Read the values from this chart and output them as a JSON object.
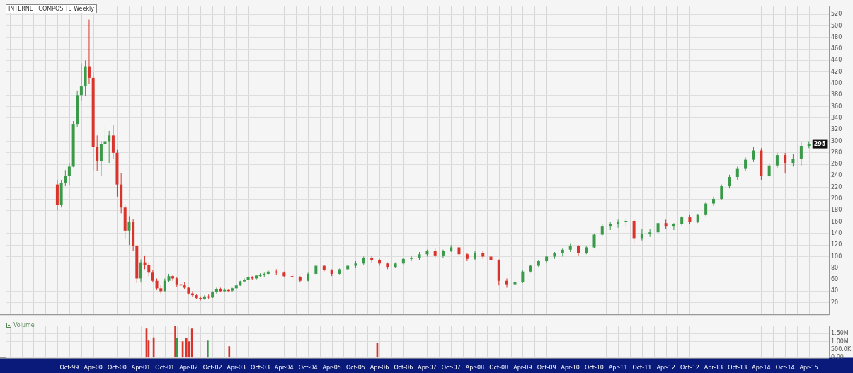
{
  "chart_data": [
    {
      "type": "candlestick",
      "title": "INTERNET COMPOSITE Weekly",
      "x": [
        "1999-07",
        "1999-08",
        "1999-09",
        "1999-10",
        "1999-11",
        "1999-12",
        "2000-01",
        "2000-02",
        "2000-03",
        "2000-04",
        "2000-05",
        "2000-06",
        "2000-07",
        "2000-08",
        "2000-09",
        "2000-10",
        "2000-11",
        "2000-12",
        "2001-01",
        "2001-02",
        "2001-03",
        "2001-04",
        "2001-05",
        "2001-06",
        "2001-07",
        "2001-08",
        "2001-09",
        "2001-10",
        "2001-11",
        "2001-12",
        "2002-01",
        "2002-02",
        "2002-03",
        "2002-04",
        "2002-05",
        "2002-06",
        "2002-07",
        "2002-08",
        "2002-09",
        "2002-10",
        "2002-11",
        "2002-12",
        "2003-01",
        "2003-02",
        "2003-03",
        "2003-04",
        "2003-05",
        "2003-06",
        "2003-07",
        "2003-08",
        "2003-09",
        "2003-10",
        "2003-11",
        "2003-12",
        "2004-02",
        "2004-04",
        "2004-06",
        "2004-08",
        "2004-10",
        "2004-12",
        "2005-02",
        "2005-04",
        "2005-06",
        "2005-08",
        "2005-10",
        "2005-12",
        "2006-02",
        "2006-04",
        "2006-06",
        "2006-08",
        "2006-10",
        "2006-12",
        "2007-02",
        "2007-04",
        "2007-06",
        "2007-08",
        "2007-10",
        "2007-12",
        "2008-02",
        "2008-04",
        "2008-06",
        "2008-08",
        "2008-10",
        "2008-12",
        "2009-02",
        "2009-04",
        "2009-06",
        "2009-08",
        "2009-10",
        "2009-12",
        "2010-02",
        "2010-04",
        "2010-06",
        "2010-08",
        "2010-10",
        "2010-12",
        "2011-02",
        "2011-04",
        "2011-06",
        "2011-08",
        "2011-10",
        "2011-12",
        "2012-02",
        "2012-04",
        "2012-06",
        "2012-08",
        "2012-10",
        "2012-12",
        "2013-02",
        "2013-04",
        "2013-06",
        "2013-08",
        "2013-10",
        "2013-12",
        "2014-02",
        "2014-04",
        "2014-06",
        "2014-08",
        "2014-10",
        "2014-12",
        "2015-02",
        "2015-04"
      ],
      "ohlc": [
        [
          225,
          232,
          180,
          190
        ],
        [
          190,
          232,
          185,
          228
        ],
        [
          228,
          250,
          222,
          240
        ],
        [
          240,
          262,
          224,
          256
        ],
        [
          256,
          335,
          255,
          330
        ],
        [
          330,
          388,
          325,
          380
        ],
        [
          380,
          435,
          370,
          395
        ],
        [
          395,
          440,
          378,
          430
        ],
        [
          430,
          511,
          400,
          410
        ],
        [
          410,
          420,
          248,
          290
        ],
        [
          290,
          310,
          248,
          265
        ],
        [
          265,
          300,
          240,
          295
        ],
        [
          295,
          326,
          265,
          300
        ],
        [
          300,
          318,
          262,
          310
        ],
        [
          310,
          328,
          270,
          280
        ],
        [
          280,
          285,
          204,
          225
        ],
        [
          225,
          245,
          175,
          185
        ],
        [
          185,
          190,
          130,
          145
        ],
        [
          145,
          170,
          120,
          160
        ],
        [
          160,
          165,
          110,
          118
        ],
        [
          118,
          120,
          54,
          62
        ],
        [
          62,
          95,
          55,
          90
        ],
        [
          90,
          102,
          78,
          85
        ],
        [
          85,
          90,
          66,
          72
        ],
        [
          72,
          76,
          55,
          58
        ],
        [
          58,
          62,
          42,
          45
        ],
        [
          45,
          50,
          36,
          40
        ],
        [
          40,
          62,
          40,
          58
        ],
        [
          58,
          70,
          56,
          66
        ],
        [
          66,
          68,
          58,
          62
        ],
        [
          62,
          64,
          48,
          52
        ],
        [
          52,
          58,
          43,
          50
        ],
        [
          50,
          56,
          44,
          46
        ],
        [
          46,
          47,
          34,
          36
        ],
        [
          36,
          40,
          30,
          33
        ],
        [
          33,
          35,
          26,
          28
        ],
        [
          28,
          31,
          24,
          27
        ],
        [
          27,
          33,
          25,
          31
        ],
        [
          31,
          34,
          27,
          29
        ],
        [
          29,
          40,
          28,
          38
        ],
        [
          38,
          46,
          36,
          44
        ],
        [
          44,
          46,
          38,
          40
        ],
        [
          40,
          45,
          38,
          42
        ],
        [
          42,
          44,
          38,
          41
        ],
        [
          41,
          46,
          39,
          45
        ],
        [
          45,
          52,
          44,
          50
        ],
        [
          50,
          58,
          49,
          57
        ],
        [
          57,
          62,
          55,
          60
        ],
        [
          60,
          66,
          58,
          64
        ],
        [
          64,
          66,
          60,
          62
        ],
        [
          62,
          68,
          60,
          67
        ],
        [
          67,
          71,
          64,
          68
        ],
        [
          68,
          72,
          65,
          70
        ],
        [
          70,
          76,
          68,
          74
        ],
        [
          74,
          78,
          68,
          72
        ],
        [
          72,
          74,
          64,
          66
        ],
        [
          66,
          70,
          62,
          64
        ],
        [
          64,
          66,
          55,
          58
        ],
        [
          58,
          72,
          57,
          70
        ],
        [
          70,
          86,
          69,
          84
        ],
        [
          84,
          85,
          74,
          76
        ],
        [
          76,
          78,
          66,
          70
        ],
        [
          70,
          80,
          68,
          78
        ],
        [
          78,
          86,
          76,
          84
        ],
        [
          84,
          92,
          80,
          88
        ],
        [
          88,
          100,
          86,
          98
        ],
        [
          98,
          102,
          90,
          94
        ],
        [
          94,
          96,
          84,
          88
        ],
        [
          88,
          90,
          78,
          82
        ],
        [
          82,
          90,
          80,
          88
        ],
        [
          88,
          98,
          86,
          96
        ],
        [
          96,
          102,
          92,
          98
        ],
        [
          98,
          108,
          94,
          104
        ],
        [
          104,
          112,
          100,
          110
        ],
        [
          110,
          114,
          98,
          102
        ],
        [
          102,
          112,
          98,
          110
        ],
        [
          110,
          120,
          108,
          116
        ],
        [
          116,
          118,
          100,
          104
        ],
        [
          104,
          106,
          92,
          96
        ],
        [
          96,
          110,
          94,
          106
        ],
        [
          106,
          110,
          96,
          100
        ],
        [
          100,
          102,
          92,
          94
        ],
        [
          94,
          95,
          50,
          58
        ],
        [
          58,
          62,
          46,
          52
        ],
        [
          52,
          60,
          47,
          56
        ],
        [
          56,
          76,
          54,
          74
        ],
        [
          74,
          86,
          72,
          84
        ],
        [
          84,
          94,
          82,
          92
        ],
        [
          92,
          102,
          90,
          100
        ],
        [
          100,
          108,
          96,
          106
        ],
        [
          106,
          114,
          100,
          112
        ],
        [
          112,
          122,
          108,
          118
        ],
        [
          118,
          120,
          102,
          106
        ],
        [
          106,
          118,
          104,
          116
        ],
        [
          116,
          140,
          114,
          138
        ],
        [
          138,
          156,
          136,
          152
        ],
        [
          152,
          160,
          146,
          156
        ],
        [
          156,
          164,
          150,
          160
        ],
        [
          160,
          166,
          152,
          162
        ],
        [
          162,
          165,
          122,
          132
        ],
        [
          132,
          148,
          128,
          140
        ],
        [
          140,
          148,
          134,
          142
        ],
        [
          142,
          160,
          140,
          158
        ],
        [
          158,
          164,
          148,
          152
        ],
        [
          152,
          158,
          146,
          156
        ],
        [
          156,
          170,
          154,
          168
        ],
        [
          168,
          172,
          156,
          160
        ],
        [
          160,
          174,
          158,
          172
        ],
        [
          172,
          195,
          170,
          192
        ],
        [
          192,
          204,
          188,
          200
        ],
        [
          200,
          225,
          198,
          222
        ],
        [
          222,
          242,
          218,
          238
        ],
        [
          238,
          256,
          232,
          252
        ],
        [
          252,
          272,
          248,
          268
        ],
        [
          268,
          290,
          264,
          284
        ],
        [
          284,
          288,
          232,
          240
        ],
        [
          240,
          262,
          238,
          258
        ],
        [
          258,
          280,
          254,
          276
        ],
        [
          276,
          280,
          244,
          262
        ],
        [
          262,
          278,
          256,
          270
        ],
        [
          270,
          298,
          258,
          292
        ],
        [
          292,
          300,
          288,
          295
        ]
      ],
      "colors": [
        "#d9342b",
        "#3a9a4a",
        "#3a9a4a",
        "#3a9a4a",
        "#3a9a4a",
        "#3a9a4a",
        "#3a9a4a",
        "#3a9a4a",
        "#d9342b",
        "#d9342b",
        "#d9342b",
        "#3a9a4a",
        "#3a9a4a",
        "#3a9a4a",
        "#d9342b",
        "#d9342b",
        "#d9342b",
        "#d9342b",
        "#3a9a4a",
        "#d9342b",
        "#d9342b",
        "#3a9a4a",
        "#d9342b",
        "#d9342b",
        "#d9342b",
        "#d9342b",
        "#d9342b",
        "#3a9a4a",
        "#3a9a4a",
        "#d9342b",
        "#d9342b",
        "#d9342b",
        "#d9342b",
        "#d9342b",
        "#d9342b",
        "#d9342b",
        "#d9342b",
        "#3a9a4a",
        "#d9342b",
        "#3a9a4a",
        "#3a9a4a",
        "#d9342b",
        "#3a9a4a",
        "#d9342b",
        "#3a9a4a",
        "#3a9a4a",
        "#3a9a4a",
        "#3a9a4a",
        "#3a9a4a",
        "#d9342b",
        "#3a9a4a",
        "#3a9a4a",
        "#3a9a4a",
        "#3a9a4a",
        "#d9342b",
        "#d9342b",
        "#d9342b",
        "#d9342b",
        "#3a9a4a",
        "#3a9a4a",
        "#d9342b",
        "#d9342b",
        "#3a9a4a",
        "#3a9a4a",
        "#3a9a4a",
        "#3a9a4a",
        "#d9342b",
        "#d9342b",
        "#d9342b",
        "#3a9a4a",
        "#3a9a4a",
        "#3a9a4a",
        "#3a9a4a",
        "#3a9a4a",
        "#d9342b",
        "#3a9a4a",
        "#3a9a4a",
        "#d9342b",
        "#d9342b",
        "#3a9a4a",
        "#d9342b",
        "#d9342b",
        "#d9342b",
        "#d9342b",
        "#3a9a4a",
        "#3a9a4a",
        "#3a9a4a",
        "#3a9a4a",
        "#3a9a4a",
        "#3a9a4a",
        "#3a9a4a",
        "#3a9a4a",
        "#d9342b",
        "#3a9a4a",
        "#3a9a4a",
        "#3a9a4a",
        "#3a9a4a",
        "#3a9a4a",
        "#3a9a4a",
        "#d9342b",
        "#3a9a4a",
        "#3a9a4a",
        "#3a9a4a",
        "#d9342b",
        "#3a9a4a",
        "#3a9a4a",
        "#d9342b",
        "#3a9a4a",
        "#3a9a4a",
        "#3a9a4a",
        "#3a9a4a",
        "#3a9a4a",
        "#3a9a4a",
        "#3a9a4a",
        "#3a9a4a",
        "#d9342b",
        "#3a9a4a",
        "#3a9a4a",
        "#d9342b",
        "#3a9a4a",
        "#3a9a4a",
        "#3a9a4a"
      ],
      "xlim": [
        "1998-06",
        "2015-09"
      ],
      "xticks": [
        {
          "value": "1998-07",
          "label": null
        },
        {
          "value": "1998-10",
          "label": null
        },
        {
          "value": "1999-01",
          "label": null
        },
        {
          "value": "1999-04",
          "label": null
        },
        {
          "value": "1999-07",
          "label": null
        },
        {
          "value": "1999-10",
          "label": null
        },
        {
          "value": "2000-01",
          "label": null
        },
        {
          "value": "2000-04",
          "label": null
        },
        {
          "value": "2000-07",
          "label": null
        },
        {
          "value": "2000-10",
          "label": null
        },
        {
          "value": "2001-01",
          "label": null
        },
        {
          "value": "2001-04",
          "label": null
        },
        {
          "value": "2001-07",
          "label": null
        },
        {
          "value": "2001-10",
          "label": null
        },
        {
          "value": "2002-01",
          "label": null
        },
        {
          "value": "2002-04",
          "label": null
        },
        {
          "value": "2002-07",
          "label": null
        },
        {
          "value": "2002-10",
          "label": null
        },
        {
          "value": "2003-01",
          "label": null
        },
        {
          "value": "2003-04",
          "label": null
        },
        {
          "value": "2003-07",
          "label": null
        },
        {
          "value": "2003-10",
          "label": null
        },
        {
          "value": "2004-01",
          "label": null
        },
        {
          "value": "2004-04",
          "label": null
        },
        {
          "value": "2004-07",
          "label": null
        },
        {
          "value": "2004-10",
          "label": null
        },
        {
          "value": "2005-01",
          "label": null
        },
        {
          "value": "2005-04",
          "label": null
        },
        {
          "value": "2005-07",
          "label": null
        },
        {
          "value": "2005-10",
          "label": null
        },
        {
          "value": "2006-01",
          "label": null
        },
        {
          "value": "2006-04",
          "label": null
        },
        {
          "value": "2006-07",
          "label": null
        },
        {
          "value": "2006-10",
          "label": null
        },
        {
          "value": "2007-01",
          "label": null
        },
        {
          "value": "2007-04",
          "label": null
        },
        {
          "value": "2007-07",
          "label": null
        },
        {
          "value": "2007-10",
          "label": null
        },
        {
          "value": "2008-01",
          "label": null
        },
        {
          "value": "2008-04",
          "label": null
        },
        {
          "value": "2008-07",
          "label": null
        },
        {
          "value": "2008-10",
          "label": null
        },
        {
          "value": "2009-01",
          "label": null
        },
        {
          "value": "2009-04",
          "label": null
        },
        {
          "value": "2009-07",
          "label": null
        },
        {
          "value": "2009-10",
          "label": null
        },
        {
          "value": "2010-01",
          "label": null
        },
        {
          "value": "2010-04",
          "label": null
        },
        {
          "value": "2010-07",
          "label": null
        },
        {
          "value": "2010-10",
          "label": null
        },
        {
          "value": "2011-01",
          "label": null
        },
        {
          "value": "2011-04",
          "label": null
        },
        {
          "value": "2011-07",
          "label": null
        },
        {
          "value": "2011-10",
          "label": null
        },
        {
          "value": "2012-01",
          "label": null
        },
        {
          "value": "2012-04",
          "label": null
        },
        {
          "value": "2012-07",
          "label": null
        },
        {
          "value": "2012-10",
          "label": null
        },
        {
          "value": "2013-01",
          "label": null
        },
        {
          "value": "2013-04",
          "label": null
        },
        {
          "value": "2013-07",
          "label": null
        },
        {
          "value": "2013-10",
          "label": null
        },
        {
          "value": "2014-01",
          "label": null
        },
        {
          "value": "2014-04",
          "label": null
        },
        {
          "value": "2014-07",
          "label": null
        },
        {
          "value": "2014-10",
          "label": null
        },
        {
          "value": "2015-01",
          "label": null
        },
        {
          "value": "2015-04",
          "label": null
        }
      ],
      "ylim": [
        0,
        535
      ],
      "yticks": [
        20,
        40,
        60,
        80,
        100,
        120,
        140,
        160,
        180,
        200,
        220,
        240,
        260,
        280,
        300,
        320,
        340,
        360,
        380,
        400,
        420,
        440,
        460,
        480,
        500,
        520
      ],
      "tick_labels": "y",
      "grid": true,
      "annotations": [
        {
          "text": "295",
          "x": "2015-04",
          "y": 295
        }
      ]
    },
    {
      "type": "bar",
      "title": "Volume",
      "x": [
        "2001-05-14",
        "2001-05-30",
        "2001-07-08",
        "2001-12-20",
        "2002-01-01",
        "2002-02-15",
        "2002-03-15",
        "2002-04-05",
        "2002-04-27",
        "2002-08-25",
        "2003-02-06",
        "2006-03-15"
      ],
      "values": [
        1800000,
        1050000,
        1250000,
        1950000,
        1200000,
        1000000,
        1200000,
        1000000,
        1800000,
        1050000,
        700000,
        900000
      ],
      "colors": [
        "#d9342b",
        "#d9342b",
        "#d9342b",
        "#d9342b",
        "#3a9a4a",
        "#d9342b",
        "#d9342b",
        "#d9342b",
        "#d9342b",
        "#3a9a4a",
        "#d9342b",
        "#d9342b"
      ],
      "xlim": [
        "1998-06",
        "2015-09"
      ],
      "xticks": [
        {
          "value": "1998-07",
          "label": null
        },
        {
          "value": "1998-10",
          "label": null
        },
        {
          "value": "1999-01",
          "label": null
        },
        {
          "value": "1999-04",
          "label": null
        },
        {
          "value": "1999-07",
          "label": null
        },
        {
          "value": "1999-10",
          "label": "Oct-99"
        },
        {
          "value": "2000-01",
          "label": null
        },
        {
          "value": "2000-04",
          "label": "Apr-00"
        },
        {
          "value": "2000-07",
          "label": null
        },
        {
          "value": "2000-10",
          "label": "Oct-00"
        },
        {
          "value": "2001-01",
          "label": null
        },
        {
          "value": "2001-04",
          "label": "Apr-01"
        },
        {
          "value": "2001-07",
          "label": null
        },
        {
          "value": "2001-10",
          "label": "Oct-01"
        },
        {
          "value": "2002-01",
          "label": null
        },
        {
          "value": "2002-04",
          "label": "Apr-02"
        },
        {
          "value": "2002-07",
          "label": null
        },
        {
          "value": "2002-10",
          "label": "Oct-02"
        },
        {
          "value": "2003-01",
          "label": null
        },
        {
          "value": "2003-04",
          "label": "Apr-03"
        },
        {
          "value": "2003-07",
          "label": null
        },
        {
          "value": "2003-10",
          "label": "Oct-03"
        },
        {
          "value": "2004-01",
          "label": null
        },
        {
          "value": "2004-04",
          "label": "Apr-04"
        },
        {
          "value": "2004-07",
          "label": null
        },
        {
          "value": "2004-10",
          "label": "Oct-04"
        },
        {
          "value": "2005-01",
          "label": null
        },
        {
          "value": "2005-04",
          "label": "Apr-05"
        },
        {
          "value": "2005-07",
          "label": null
        },
        {
          "value": "2005-10",
          "label": "Oct-05"
        },
        {
          "value": "2006-01",
          "label": null
        },
        {
          "value": "2006-04",
          "label": "Apr-06"
        },
        {
          "value": "2006-07",
          "label": null
        },
        {
          "value": "2006-10",
          "label": "Oct-06"
        },
        {
          "value": "2007-01",
          "label": null
        },
        {
          "value": "2007-04",
          "label": "Apr-07"
        },
        {
          "value": "2007-07",
          "label": null
        },
        {
          "value": "2007-10",
          "label": "Oct-07"
        },
        {
          "value": "2008-01",
          "label": null
        },
        {
          "value": "2008-04",
          "label": "Apr-08"
        },
        {
          "value": "2008-07",
          "label": null
        },
        {
          "value": "2008-10",
          "label": "Oct-08"
        },
        {
          "value": "2009-01",
          "label": null
        },
        {
          "value": "2009-04",
          "label": "Apr-09"
        },
        {
          "value": "2009-07",
          "label": null
        },
        {
          "value": "2009-10",
          "label": "Oct-09"
        },
        {
          "value": "2010-01",
          "label": null
        },
        {
          "value": "2010-04",
          "label": "Apr-10"
        },
        {
          "value": "2010-07",
          "label": null
        },
        {
          "value": "2010-10",
          "label": "Oct-10"
        },
        {
          "value": "2011-01",
          "label": null
        },
        {
          "value": "2011-04",
          "label": "Apr-11"
        },
        {
          "value": "2011-07",
          "label": null
        },
        {
          "value": "2011-10",
          "label": "Oct-11"
        },
        {
          "value": "2012-01",
          "label": null
        },
        {
          "value": "2012-04",
          "label": "Apr-12"
        },
        {
          "value": "2012-07",
          "label": null
        },
        {
          "value": "2012-10",
          "label": "Oct-12"
        },
        {
          "value": "2013-01",
          "label": null
        },
        {
          "value": "2013-04",
          "label": "Apr-13"
        },
        {
          "value": "2013-07",
          "label": null
        },
        {
          "value": "2013-10",
          "label": "Oct-13"
        },
        {
          "value": "2014-01",
          "label": null
        },
        {
          "value": "2014-04",
          "label": "Apr-14"
        },
        {
          "value": "2014-07",
          "label": null
        },
        {
          "value": "2014-10",
          "label": "Oct-14"
        },
        {
          "value": "2015-01",
          "label": null
        },
        {
          "value": "2015-04",
          "label": "Apr-15"
        }
      ],
      "ylim": [
        0,
        2000000
      ],
      "yticks": [
        {
          "value": 0,
          "label": "0.00"
        },
        {
          "value": 500000,
          "label": "500.0K"
        },
        {
          "value": 1000000,
          "label": "1.00M"
        },
        {
          "value": 1500000,
          "label": "1.50M"
        }
      ],
      "grid": true
    }
  ]
}
